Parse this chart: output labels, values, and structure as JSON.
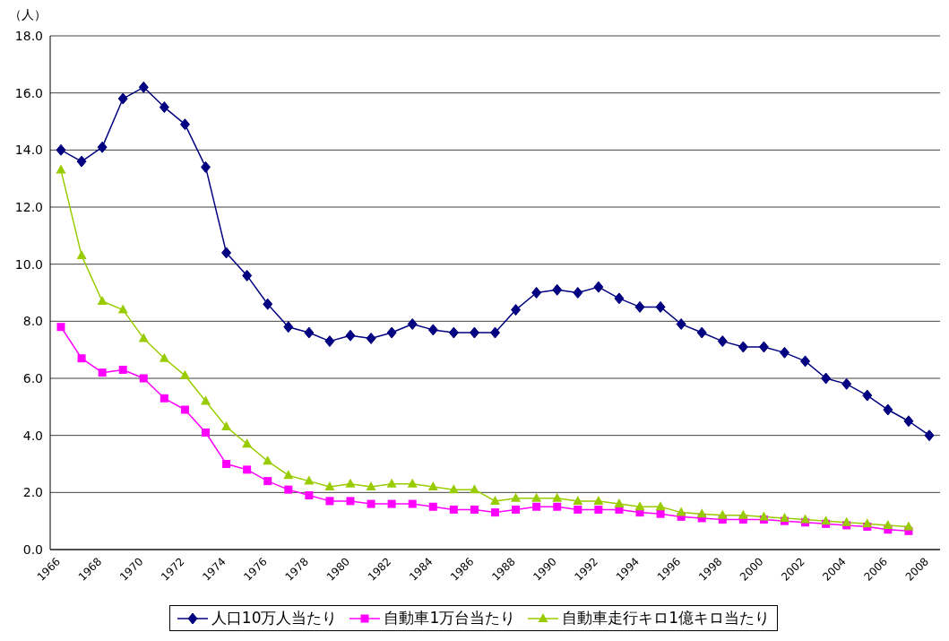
{
  "chart_data": {
    "type": "line",
    "ylabel": "（人）",
    "categories": [
      "1966",
      null,
      "1968",
      null,
      "1970",
      null,
      "1972",
      null,
      "1974",
      null,
      "1976",
      null,
      "1978",
      null,
      "1980",
      null,
      "1982",
      null,
      "1984",
      null,
      "1986",
      null,
      "1988",
      null,
      "1990",
      null,
      "1992",
      null,
      "1994",
      null,
      "1996",
      null,
      "1998",
      null,
      "2000",
      null,
      "2002",
      null,
      "2004",
      null,
      "2006",
      null,
      "2008"
    ],
    "series": [
      {
        "name": "人口10万人当たり",
        "color": "#000080",
        "marker": "diamond",
        "values": [
          14.0,
          13.6,
          14.1,
          15.8,
          16.2,
          15.5,
          14.9,
          13.4,
          10.4,
          9.6,
          8.6,
          7.8,
          7.6,
          7.3,
          7.5,
          7.4,
          7.6,
          7.9,
          7.7,
          7.6,
          7.6,
          7.6,
          8.4,
          9.0,
          9.1,
          9.0,
          9.2,
          8.8,
          8.5,
          8.5,
          7.9,
          7.6,
          7.3,
          7.1,
          7.1,
          6.9,
          6.6,
          6.0,
          5.8,
          5.4,
          4.9,
          4.5,
          4.0
        ]
      },
      {
        "name": "自動車1万台当たり",
        "color": "#ff00ff",
        "marker": "square",
        "values": [
          7.8,
          6.7,
          6.2,
          6.3,
          6.0,
          5.3,
          4.9,
          4.1,
          3.0,
          2.8,
          2.4,
          2.1,
          1.9,
          1.7,
          1.7,
          1.6,
          1.6,
          1.6,
          1.5,
          1.4,
          1.4,
          1.3,
          1.4,
          1.5,
          1.5,
          1.4,
          1.4,
          1.4,
          1.3,
          1.25,
          1.15,
          1.1,
          1.05,
          1.05,
          1.05,
          1.0,
          0.95,
          0.9,
          0.85,
          0.8,
          0.7,
          0.65,
          null
        ]
      },
      {
        "name": "自動車走行キロ1億キロ当たり",
        "color": "#99cc00",
        "marker": "triangle",
        "values": [
          13.3,
          10.3,
          8.7,
          8.4,
          7.4,
          6.7,
          6.1,
          5.2,
          4.3,
          3.7,
          3.1,
          2.6,
          2.4,
          2.2,
          2.3,
          2.2,
          2.3,
          2.3,
          2.2,
          2.1,
          2.1,
          1.7,
          1.8,
          1.8,
          1.8,
          1.7,
          1.7,
          1.6,
          1.5,
          1.5,
          1.3,
          1.25,
          1.2,
          1.2,
          1.15,
          1.1,
          1.05,
          1.0,
          0.95,
          0.9,
          0.85,
          0.8,
          null
        ]
      }
    ],
    "ylim": [
      0,
      18
    ],
    "yticks": [
      {
        "value": 0,
        "label": "0.0"
      },
      {
        "value": 2,
        "label": "2.0"
      },
      {
        "value": 4,
        "label": "4.0"
      },
      {
        "value": 6,
        "label": "6.0"
      },
      {
        "value": 8,
        "label": "8.0"
      },
      {
        "value": 10,
        "label": "10.0"
      },
      {
        "value": 12,
        "label": "12.0"
      },
      {
        "value": 14,
        "label": "14.0"
      },
      {
        "value": 16,
        "label": "16.0"
      },
      {
        "value": 18,
        "label": "18.0"
      }
    ],
    "grid": "y",
    "legend": "bottom",
    "line_style": "solid"
  }
}
